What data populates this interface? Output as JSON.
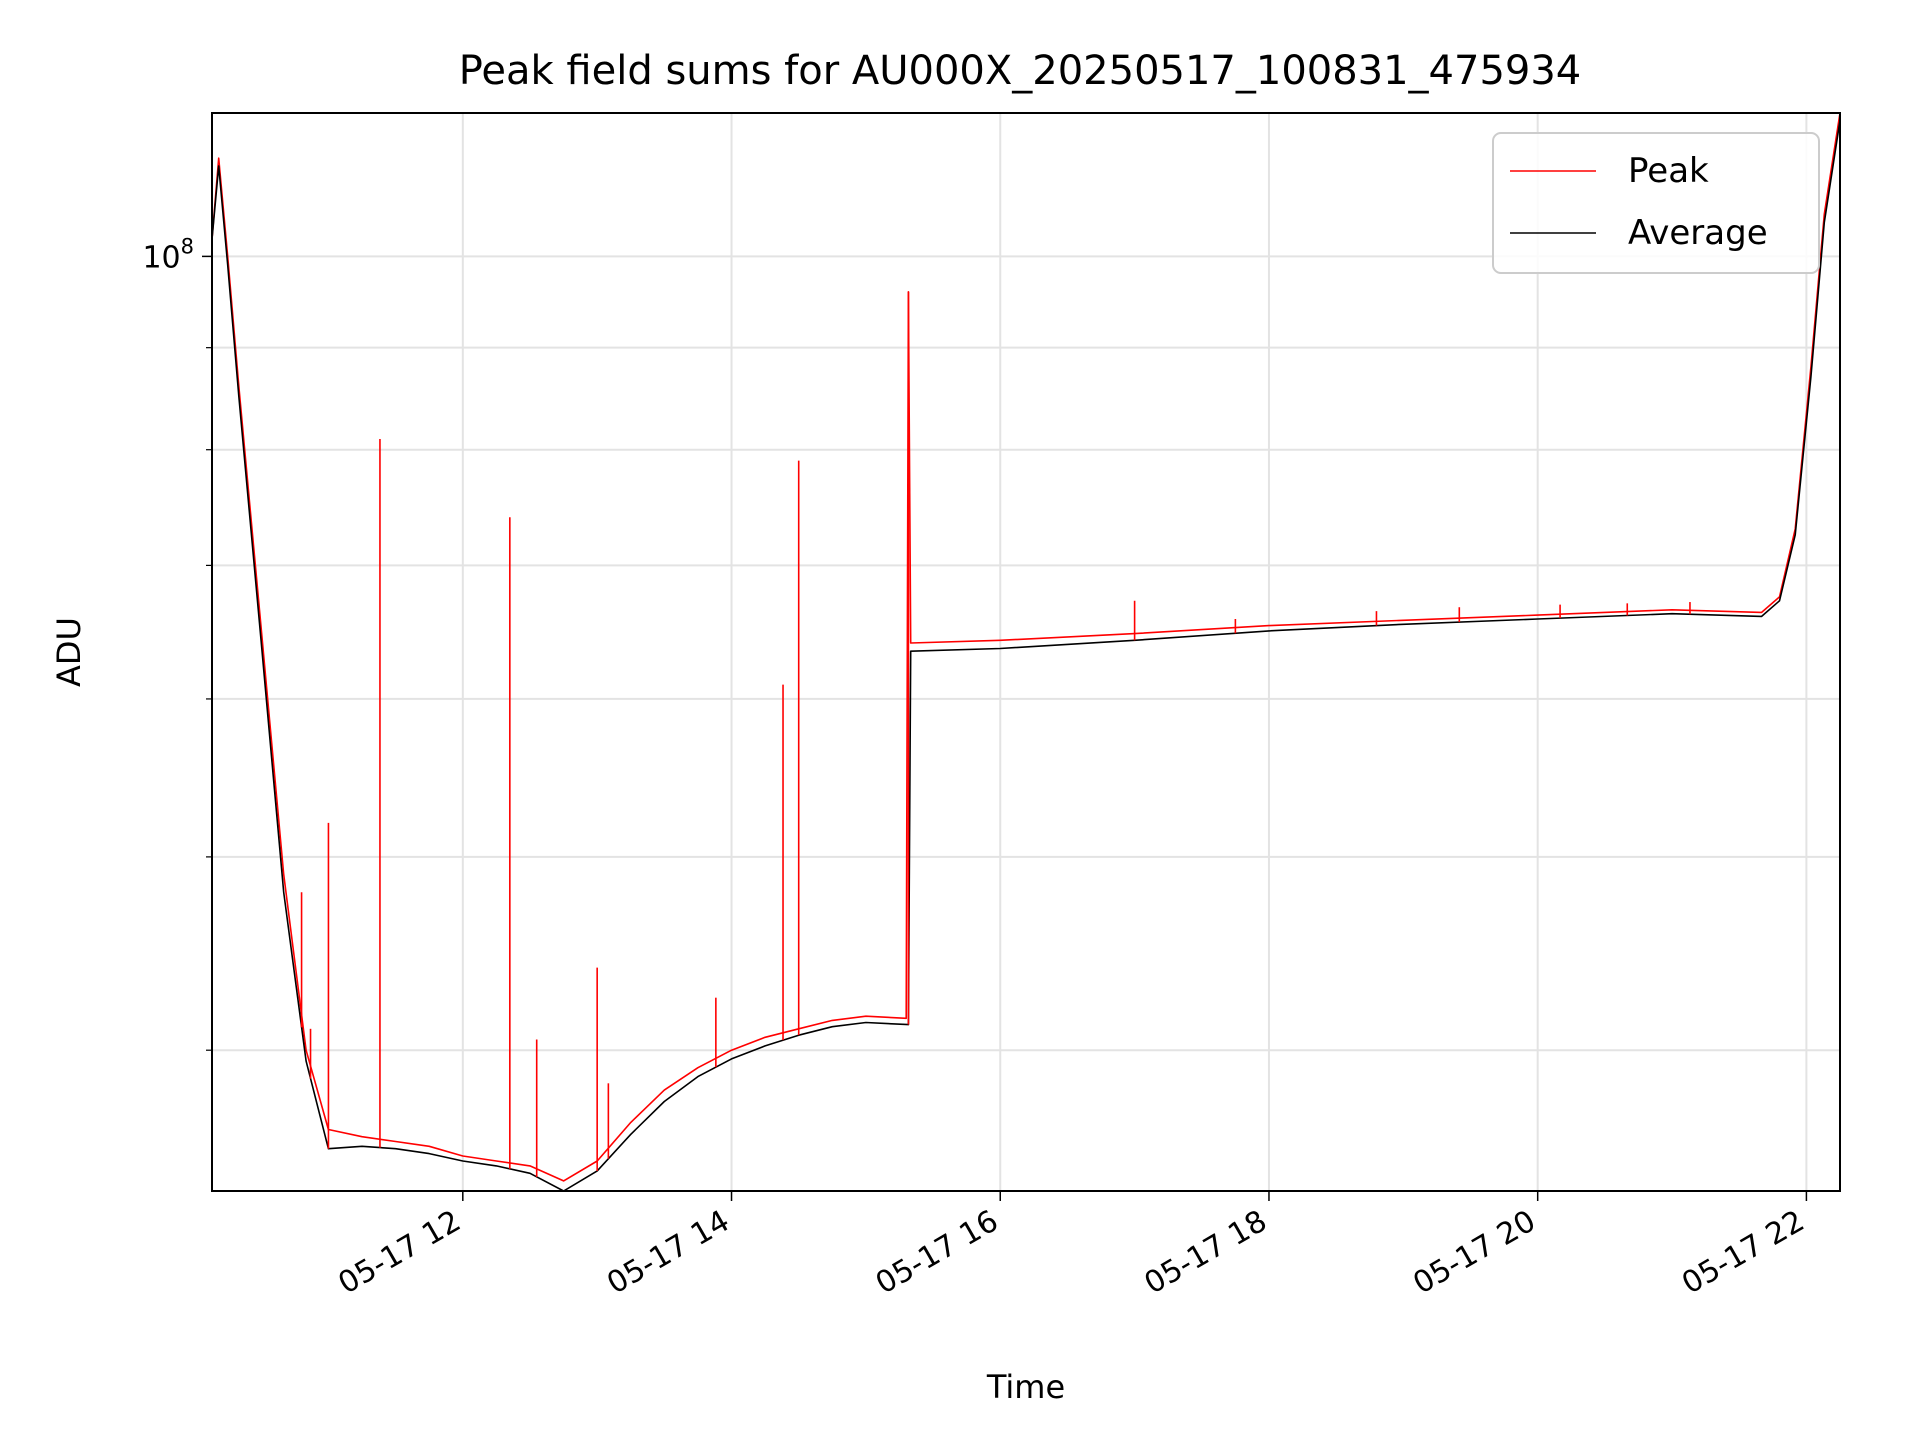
{
  "chart_data": {
    "type": "line",
    "title": "Peak field sums for AU000X_20250517_100831_475934",
    "xlabel": "Time",
    "ylabel": "ADU",
    "y_scale": "log",
    "ylim": [
      34000000,
      118000000
    ],
    "xlim": [
      "2025-05-17 10:08",
      "2025-05-17 22:15"
    ],
    "grid": true,
    "legend_position": "upper right",
    "x_tick_labels": [
      "05-17 12",
      "05-17 14",
      "05-17 16",
      "05-17 18",
      "05-17 20",
      "05-17 22"
    ],
    "x_tick_times": [
      "2025-05-17 12:00",
      "2025-05-17 14:00",
      "2025-05-17 16:00",
      "2025-05-17 18:00",
      "2025-05-17 20:00",
      "2025-05-17 22:00"
    ],
    "y_major_ticks": [
      {
        "value": 100000000,
        "base": "10",
        "exponent": "8"
      }
    ],
    "y_minor_ticks": [
      40000000,
      50000000,
      60000000,
      70000000,
      80000000,
      90000000
    ],
    "series": [
      {
        "name": "Peak",
        "color": "#ff0000",
        "points": [
          [
            "2025-05-17 10:08",
            102000000
          ],
          [
            "2025-05-17 10:11",
            112000000
          ],
          [
            "2025-05-17 10:15",
            100000000
          ],
          [
            "2025-05-17 10:20",
            86000000
          ],
          [
            "2025-05-17 10:30",
            65000000
          ],
          [
            "2025-05-17 10:40",
            49000000
          ],
          [
            "2025-05-17 10:50",
            40000000
          ],
          [
            "2025-05-17 11:00",
            36500000
          ],
          [
            "2025-05-17 11:15",
            36200000
          ],
          [
            "2025-05-17 11:30",
            36000000
          ],
          [
            "2025-05-17 11:45",
            35800000
          ],
          [
            "2025-05-17 12:00",
            35400000
          ],
          [
            "2025-05-17 12:15",
            35200000
          ],
          [
            "2025-05-17 12:30",
            35000000
          ],
          [
            "2025-05-17 12:45",
            34400000
          ],
          [
            "2025-05-17 13:00",
            35200000
          ],
          [
            "2025-05-17 13:15",
            36800000
          ],
          [
            "2025-05-17 13:30",
            38200000
          ],
          [
            "2025-05-17 13:45",
            39200000
          ],
          [
            "2025-05-17 14:00",
            40000000
          ],
          [
            "2025-05-17 14:15",
            40600000
          ],
          [
            "2025-05-17 14:30",
            41000000
          ],
          [
            "2025-05-17 14:45",
            41400000
          ],
          [
            "2025-05-17 15:00",
            41600000
          ],
          [
            "2025-05-17 15:18",
            41500000
          ],
          [
            "2025-05-17 15:19",
            96000000
          ],
          [
            "2025-05-17 15:20",
            64000000
          ],
          [
            "2025-05-17 16:00",
            64200000
          ],
          [
            "2025-05-17 17:00",
            64700000
          ],
          [
            "2025-05-17 18:00",
            65300000
          ],
          [
            "2025-05-17 19:00",
            65700000
          ],
          [
            "2025-05-17 20:00",
            66100000
          ],
          [
            "2025-05-17 21:00",
            66500000
          ],
          [
            "2025-05-17 21:40",
            66300000
          ],
          [
            "2025-05-17 21:48",
            67500000
          ],
          [
            "2025-05-17 21:55",
            73000000
          ],
          [
            "2025-05-17 22:02",
            88000000
          ],
          [
            "2025-05-17 22:08",
            105000000
          ],
          [
            "2025-05-17 22:15",
            118000000
          ]
        ]
      },
      {
        "name": "Average",
        "color": "#000000",
        "points": [
          [
            "2025-05-17 10:08",
            102000000
          ],
          [
            "2025-05-17 10:11",
            111000000
          ],
          [
            "2025-05-17 10:15",
            99000000
          ],
          [
            "2025-05-17 10:20",
            85000000
          ],
          [
            "2025-05-17 10:30",
            64000000
          ],
          [
            "2025-05-17 10:40",
            48000000
          ],
          [
            "2025-05-17 10:50",
            39500000
          ],
          [
            "2025-05-17 11:00",
            35700000
          ],
          [
            "2025-05-17 11:15",
            35800000
          ],
          [
            "2025-05-17 11:30",
            35700000
          ],
          [
            "2025-05-17 11:45",
            35500000
          ],
          [
            "2025-05-17 12:00",
            35200000
          ],
          [
            "2025-05-17 12:15",
            35000000
          ],
          [
            "2025-05-17 12:30",
            34700000
          ],
          [
            "2025-05-17 12:45",
            34000000
          ],
          [
            "2025-05-17 13:00",
            34800000
          ],
          [
            "2025-05-17 13:15",
            36300000
          ],
          [
            "2025-05-17 13:30",
            37700000
          ],
          [
            "2025-05-17 13:45",
            38800000
          ],
          [
            "2025-05-17 14:00",
            39600000
          ],
          [
            "2025-05-17 14:15",
            40200000
          ],
          [
            "2025-05-17 14:30",
            40700000
          ],
          [
            "2025-05-17 14:45",
            41100000
          ],
          [
            "2025-05-17 15:00",
            41300000
          ],
          [
            "2025-05-17 15:19",
            41200000
          ],
          [
            "2025-05-17 15:20",
            63400000
          ],
          [
            "2025-05-17 16:00",
            63600000
          ],
          [
            "2025-05-17 17:00",
            64200000
          ],
          [
            "2025-05-17 18:00",
            64900000
          ],
          [
            "2025-05-17 19:00",
            65400000
          ],
          [
            "2025-05-17 20:00",
            65800000
          ],
          [
            "2025-05-17 21:00",
            66200000
          ],
          [
            "2025-05-17 21:40",
            66000000
          ],
          [
            "2025-05-17 21:48",
            67200000
          ],
          [
            "2025-05-17 21:55",
            72500000
          ],
          [
            "2025-05-17 22:02",
            87000000
          ],
          [
            "2025-05-17 22:08",
            104000000
          ],
          [
            "2025-05-17 22:15",
            117000000
          ]
        ]
      }
    ],
    "peak_spikes": [
      [
        "2025-05-17 10:48",
        48000000
      ],
      [
        "2025-05-17 10:52",
        41000000
      ],
      [
        "2025-05-17 11:00",
        52000000
      ],
      [
        "2025-05-17 11:23",
        81000000
      ],
      [
        "2025-05-17 12:21",
        74000000
      ],
      [
        "2025-05-17 12:33",
        40500000
      ],
      [
        "2025-05-17 13:00",
        44000000
      ],
      [
        "2025-05-17 13:05",
        38500000
      ],
      [
        "2025-05-17 13:53",
        42500000
      ],
      [
        "2025-05-17 14:23",
        61000000
      ],
      [
        "2025-05-17 14:30",
        79000000
      ],
      [
        "2025-05-17 15:19",
        96000000
      ],
      [
        "2025-05-17 17:00",
        67200000
      ],
      [
        "2025-05-17 17:45",
        65800000
      ],
      [
        "2025-05-17 18:48",
        66400000
      ],
      [
        "2025-05-17 19:25",
        66700000
      ],
      [
        "2025-05-17 20:10",
        66900000
      ],
      [
        "2025-05-17 20:40",
        67000000
      ],
      [
        "2025-05-17 21:08",
        67100000
      ]
    ]
  }
}
